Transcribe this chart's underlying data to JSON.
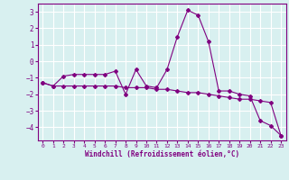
{
  "xlabel": "Windchill (Refroidissement éolien,°C)",
  "x": [
    0,
    1,
    2,
    3,
    4,
    5,
    6,
    7,
    8,
    9,
    10,
    11,
    12,
    13,
    14,
    15,
    16,
    17,
    18,
    19,
    20,
    21,
    22,
    23
  ],
  "y_line1": [
    -1.3,
    -1.5,
    -0.9,
    -0.8,
    -0.8,
    -0.8,
    -0.8,
    -0.6,
    -2.0,
    -0.5,
    -1.5,
    -1.6,
    -0.5,
    1.5,
    3.1,
    2.8,
    1.2,
    -1.8,
    -1.8,
    -2.0,
    -2.1,
    -3.6,
    -3.9,
    -4.5
  ],
  "y_line2": [
    -1.3,
    -1.5,
    -1.5,
    -1.5,
    -1.5,
    -1.5,
    -1.5,
    -1.5,
    -1.6,
    -1.6,
    -1.6,
    -1.7,
    -1.7,
    -1.8,
    -1.9,
    -1.9,
    -2.0,
    -2.1,
    -2.2,
    -2.3,
    -2.3,
    -2.4,
    -2.5,
    -4.5
  ],
  "line_color": "#800080",
  "bg_color": "#d8f0f0",
  "grid_color": "#ffffff",
  "ylim": [
    -4.8,
    3.5
  ],
  "yticks": [
    -4,
    -3,
    -2,
    -1,
    0,
    1,
    2,
    3
  ],
  "xlim": [
    -0.5,
    23.5
  ]
}
